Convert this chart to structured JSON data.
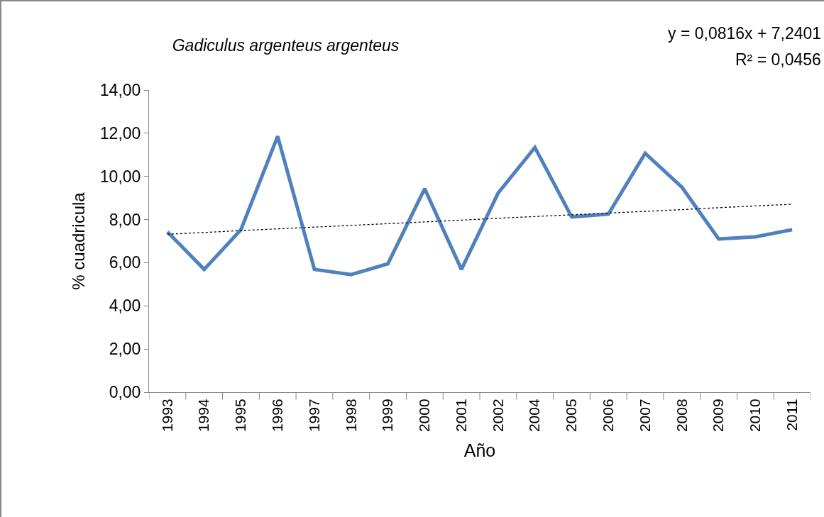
{
  "chart_data": {
    "type": "line",
    "title": "Gadiculus argenteus argenteus",
    "xlabel": "Año",
    "ylabel": "% cuadricula",
    "categories": [
      "1993",
      "1994",
      "1995",
      "1996",
      "1997",
      "1998",
      "1999",
      "2000",
      "2001",
      "2002",
      "2004",
      "2005",
      "2006",
      "2007",
      "2008",
      "2009",
      "2010",
      "2011"
    ],
    "series": [
      {
        "color": "#4f81bd",
        "line_style": "solid",
        "values": [
          7.43,
          5.69,
          7.53,
          11.86,
          5.69,
          5.45,
          5.95,
          9.43,
          5.69,
          9.23,
          11.34,
          8.12,
          8.25,
          11.07,
          9.5,
          7.1,
          7.2,
          7.53
        ]
      },
      {
        "color": "#000000",
        "line_style": "dotted",
        "values": [
          7.32,
          7.4,
          7.49,
          7.57,
          7.65,
          7.73,
          7.81,
          7.89,
          7.97,
          8.06,
          8.14,
          8.22,
          8.3,
          8.38,
          8.46,
          8.55,
          8.63,
          8.71
        ]
      }
    ],
    "ylim": [
      0,
      14
    ],
    "yticks": [
      {
        "value": 0,
        "label": "0,00"
      },
      {
        "value": 2,
        "label": "2,00"
      },
      {
        "value": 4,
        "label": "4,00"
      },
      {
        "value": 6,
        "label": "6,00"
      },
      {
        "value": 8,
        "label": "8,00"
      },
      {
        "value": 10,
        "label": "10,00"
      },
      {
        "value": 12,
        "label": "12,00"
      },
      {
        "value": 14,
        "label": "14,00"
      }
    ],
    "annotations": [
      "y = 0,0816x + 7,2401",
      "R² = 0,0456"
    ],
    "marker": "none"
  }
}
